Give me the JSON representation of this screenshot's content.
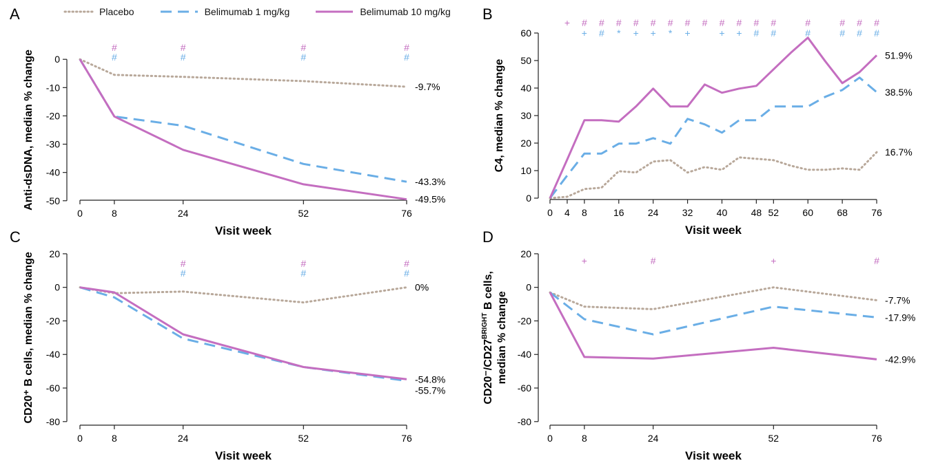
{
  "legend": {
    "placebo_label": "Placebo",
    "bel1_label": "Belimumab 1 mg/kg",
    "bel10_label": "Belimumab 10 mg/kg"
  },
  "colors": {
    "placebo": "#b8a89a",
    "bel1": "#6aaee6",
    "bel10": "#c46ec0",
    "marker_bel10": "#c46ec0",
    "marker_bel1": "#6aaee6"
  },
  "chart_data": [
    {
      "panel": "A",
      "type": "line",
      "xlabel": "Visit week",
      "ylabel": "Anti-dsDNA, median % change",
      "xlim": [
        0,
        76
      ],
      "ylim": [
        -52,
        2
      ],
      "xticks": [
        0,
        8,
        24,
        52,
        76
      ],
      "yticks": [
        0,
        -10,
        -20,
        -30,
        -40,
        -50
      ],
      "series": [
        {
          "name": "Placebo",
          "key": "placebo",
          "x": [
            0,
            8,
            24,
            52,
            76
          ],
          "y": [
            0,
            -5.5,
            -6.2,
            -7.7,
            -9.7
          ],
          "end_label": "-9.7%"
        },
        {
          "name": "Belimumab 1 mg/kg",
          "key": "bel1",
          "x": [
            0,
            8,
            24,
            52,
            76
          ],
          "y": [
            0,
            -20.2,
            -23.5,
            -37,
            -43.3
          ],
          "end_label": "-43.3%"
        },
        {
          "name": "Belimumab 10 mg/kg",
          "key": "bel10",
          "x": [
            0,
            8,
            24,
            52,
            76
          ],
          "y": [
            0,
            -20.2,
            -32,
            -44.2,
            -49.5
          ],
          "end_label": "-49.5%"
        }
      ],
      "markers": [
        {
          "x": 8,
          "bel10": "#",
          "bel1": "#"
        },
        {
          "x": 24,
          "bel10": "#",
          "bel1": "#"
        },
        {
          "x": 52,
          "bel10": "#",
          "bel1": "#"
        },
        {
          "x": 76,
          "bel10": "#",
          "bel1": "#"
        }
      ]
    },
    {
      "panel": "B",
      "type": "line",
      "xlabel": "Visit week",
      "ylabel": "C4, median % change",
      "xlim": [
        0,
        76
      ],
      "ylim": [
        -2,
        60
      ],
      "xticks": [
        0,
        4,
        8,
        16,
        24,
        32,
        40,
        48,
        52,
        60,
        68,
        76
      ],
      "yticks": [
        0,
        10,
        20,
        30,
        40,
        50,
        60
      ],
      "series": [
        {
          "name": "Placebo",
          "key": "placebo",
          "x": [
            0,
            4,
            8,
            12,
            16,
            20,
            24,
            28,
            32,
            36,
            40,
            44,
            48,
            52,
            56,
            60,
            64,
            68,
            72,
            76
          ],
          "y": [
            0,
            0.5,
            3.3,
            3.8,
            9.8,
            9.3,
            13.3,
            13.8,
            9.3,
            11.3,
            10.3,
            14.8,
            14.3,
            13.8,
            11.8,
            10.3,
            10.3,
            10.8,
            10.3,
            16.7
          ],
          "end_label": "16.7%"
        },
        {
          "name": "Belimumab 1 mg/kg",
          "key": "bel1",
          "x": [
            0,
            4,
            8,
            12,
            16,
            20,
            24,
            28,
            32,
            36,
            40,
            44,
            48,
            52,
            56,
            60,
            64,
            68,
            72,
            76
          ],
          "y": [
            0,
            8.2,
            16.2,
            16.2,
            19.8,
            19.8,
            21.8,
            19.8,
            28.8,
            26.8,
            23.8,
            28.3,
            28.3,
            33.3,
            33.3,
            33.3,
            36.8,
            39.3,
            43.8,
            38.5
          ],
          "end_label": "38.5%"
        },
        {
          "name": "Belimumab 10 mg/kg",
          "key": "bel10",
          "x": [
            0,
            4,
            8,
            12,
            16,
            20,
            24,
            28,
            32,
            36,
            40,
            44,
            48,
            52,
            56,
            60,
            64,
            68,
            72,
            76
          ],
          "y": [
            0,
            14,
            28.3,
            28.3,
            27.8,
            33.3,
            39.8,
            33.3,
            33.3,
            41.3,
            38.3,
            39.8,
            40.8,
            46.8,
            52.8,
            58.3,
            49.8,
            41.8,
            45.8,
            51.9
          ],
          "end_label": "51.9%"
        }
      ],
      "markers": [
        {
          "x": 4,
          "bel10": "+",
          "bel1": ""
        },
        {
          "x": 8,
          "bel10": "#",
          "bel1": "+"
        },
        {
          "x": 12,
          "bel10": "#",
          "bel1": "#"
        },
        {
          "x": 16,
          "bel10": "#",
          "bel1": "*"
        },
        {
          "x": 20,
          "bel10": "#",
          "bel1": "+"
        },
        {
          "x": 24,
          "bel10": "#",
          "bel1": "+"
        },
        {
          "x": 28,
          "bel10": "#",
          "bel1": "*"
        },
        {
          "x": 32,
          "bel10": "#",
          "bel1": "+"
        },
        {
          "x": 36,
          "bel10": "#",
          "bel1": ""
        },
        {
          "x": 40,
          "bel10": "#",
          "bel1": "+"
        },
        {
          "x": 44,
          "bel10": "#",
          "bel1": "+"
        },
        {
          "x": 48,
          "bel10": "#",
          "bel1": "#"
        },
        {
          "x": 52,
          "bel10": "#",
          "bel1": "#"
        },
        {
          "x": 60,
          "bel10": "#",
          "bel1": "#"
        },
        {
          "x": 68,
          "bel10": "#",
          "bel1": "#"
        },
        {
          "x": 72,
          "bel10": "#",
          "bel1": "#"
        },
        {
          "x": 76,
          "bel10": "#",
          "bel1": "#"
        }
      ]
    },
    {
      "panel": "C",
      "type": "line",
      "xlabel": "Visit week",
      "ylabel": "CD20⁺ B cells, median % change",
      "xlim": [
        0,
        76
      ],
      "ylim": [
        -85,
        22
      ],
      "xticks": [
        0,
        8,
        24,
        52,
        76
      ],
      "yticks": [
        20,
        0,
        -20,
        -40,
        -60,
        -80
      ],
      "series": [
        {
          "name": "Placebo",
          "key": "placebo",
          "x": [
            0,
            8,
            24,
            52,
            76
          ],
          "y": [
            0,
            -3.5,
            -2.5,
            -9,
            0
          ],
          "end_label": "0%"
        },
        {
          "name": "Belimumab 1 mg/kg",
          "key": "bel1",
          "x": [
            0,
            8,
            24,
            52,
            76
          ],
          "y": [
            0,
            -6,
            -30.5,
            -47.5,
            -55.7
          ],
          "end_label": "-55.7%"
        },
        {
          "name": "Belimumab 10 mg/kg",
          "key": "bel10",
          "x": [
            0,
            8,
            24,
            52,
            76
          ],
          "y": [
            0,
            -3,
            -28,
            -47.5,
            -54.8
          ],
          "end_label": "-54.8%"
        }
      ],
      "markers": [
        {
          "x": 24,
          "bel10": "#",
          "bel1": "#"
        },
        {
          "x": 52,
          "bel10": "#",
          "bel1": "#"
        },
        {
          "x": 76,
          "bel10": "#",
          "bel1": "#"
        }
      ]
    },
    {
      "panel": "D",
      "type": "line",
      "xlabel": "Visit week",
      "ylabel": "CD20⁻/CD27",
      "ylabel_sup": "BRIGHT",
      "ylabel_tail": " B cells,",
      "ylabel2": "median % change",
      "xlim": [
        0,
        76
      ],
      "ylim": [
        -85,
        22
      ],
      "xticks": [
        0,
        8,
        24,
        52,
        76
      ],
      "yticks": [
        20,
        0,
        -20,
        -40,
        -60,
        -80
      ],
      "series": [
        {
          "name": "Placebo",
          "key": "placebo",
          "x": [
            0,
            8,
            24,
            52,
            76
          ],
          "y": [
            -3,
            -11.5,
            -13,
            0,
            -7.7
          ],
          "end_label": "-7.7%"
        },
        {
          "name": "Belimumab 1 mg/kg",
          "key": "bel1",
          "x": [
            0,
            8,
            24,
            52,
            76
          ],
          "y": [
            -3,
            -19,
            -28,
            -11.5,
            -17.9
          ],
          "end_label": "-17.9%"
        },
        {
          "name": "Belimumab 10 mg/kg",
          "key": "bel10",
          "x": [
            0,
            8,
            24,
            52,
            76
          ],
          "y": [
            -3,
            -41.5,
            -42.5,
            -36,
            -42.9
          ],
          "end_label": "-42.9%"
        }
      ],
      "markers": [
        {
          "x": 8,
          "bel10": "+",
          "bel1": ""
        },
        {
          "x": 24,
          "bel10": "#",
          "bel1": ""
        },
        {
          "x": 52,
          "bel10": "+",
          "bel1": ""
        },
        {
          "x": 76,
          "bel10": "#",
          "bel1": ""
        }
      ]
    }
  ]
}
